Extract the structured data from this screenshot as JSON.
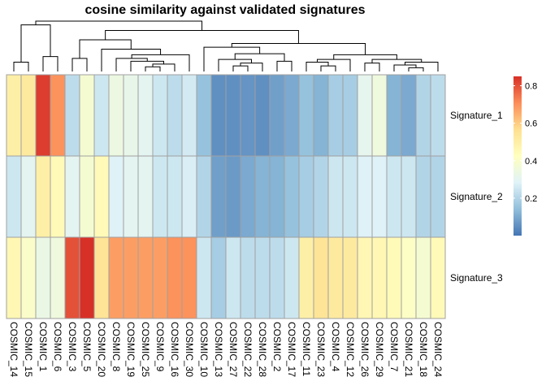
{
  "chart_data": {
    "type": "heatmap",
    "title": "cosine similarity against validated signatures",
    "columns": [
      "COSMIC_14",
      "COSMIC_15",
      "COSMIC_1",
      "COSMIC_6",
      "COSMIC_3",
      "COSMIC_5",
      "COSMIC_20",
      "COSMIC_8",
      "COSMIC_19",
      "COSMIC_25",
      "COSMIC_9",
      "COSMIC_16",
      "COSMIC_30",
      "COSMIC_10",
      "COSMIC_13",
      "COSMIC_27",
      "COSMIC_22",
      "COSMIC_28",
      "COSMIC_2",
      "COSMIC_17",
      "COSMIC_11",
      "COSMIC_23",
      "COSMIC_4",
      "COSMIC_12",
      "COSMIC_26",
      "COSMIC_29",
      "COSMIC_7",
      "COSMIC_21",
      "COSMIC_18",
      "COSMIC_24"
    ],
    "rows": [
      "Signature_1",
      "Signature_2",
      "Signature_3"
    ],
    "values": [
      [
        0.5,
        0.52,
        0.83,
        0.7,
        0.22,
        0.38,
        0.25,
        0.34,
        0.32,
        0.3,
        0.25,
        0.22,
        0.26,
        0.15,
        0.05,
        0.05,
        0.06,
        0.05,
        0.08,
        0.1,
        0.15,
        0.12,
        0.18,
        0.18,
        0.31,
        0.35,
        0.12,
        0.1,
        0.2,
        0.22
      ],
      [
        0.25,
        0.3,
        0.5,
        0.45,
        0.3,
        0.38,
        0.45,
        0.28,
        0.3,
        0.3,
        0.25,
        0.25,
        0.27,
        0.2,
        0.08,
        0.07,
        0.1,
        0.12,
        0.12,
        0.15,
        0.18,
        0.2,
        0.25,
        0.25,
        0.28,
        0.28,
        0.25,
        0.25,
        0.2,
        0.2
      ],
      [
        0.46,
        0.4,
        0.33,
        0.35,
        0.8,
        0.85,
        0.55,
        0.68,
        0.68,
        0.68,
        0.68,
        0.7,
        0.7,
        0.25,
        0.18,
        0.25,
        0.22,
        0.22,
        0.22,
        0.25,
        0.5,
        0.55,
        0.52,
        0.52,
        0.46,
        0.46,
        0.45,
        0.41,
        0.38,
        0.45
      ]
    ],
    "legend": {
      "ticks": [
        0.2,
        0.4,
        0.6,
        0.8
      ],
      "min": 0.0,
      "max": 0.85,
      "placement": "right"
    },
    "colors": [
      "#4575b4",
      "#91bfdb",
      "#e0f3f8",
      "#ffffbf",
      "#fee090",
      "#fc8d59",
      "#d73027"
    ],
    "border_color": "#a0a0a0",
    "dendrogram": [
      {
        "id": "m1",
        "a": 0,
        "b": 1,
        "h": 1.0
      },
      {
        "id": "m2",
        "a": 2,
        "b": 3,
        "h": 1.6
      },
      {
        "id": "m3",
        "a": "m1",
        "b": "m2",
        "h": 5.0
      },
      {
        "id": "m4",
        "a": 4,
        "b": 5,
        "h": 1.4
      },
      {
        "id": "m5",
        "a": 9,
        "b": 10,
        "h": 0.5
      },
      {
        "id": "m6",
        "a": "m5",
        "b": 11,
        "h": 0.8
      },
      {
        "id": "m7",
        "a": 8,
        "b": "m6",
        "h": 1.1
      },
      {
        "id": "m8",
        "a": 7,
        "b": "m7",
        "h": 1.4
      },
      {
        "id": "m9",
        "a": "m8",
        "b": 12,
        "h": 1.8
      },
      {
        "id": "m10",
        "a": 6,
        "b": "m9",
        "h": 2.4
      },
      {
        "id": "m11",
        "a": "m4",
        "b": "m10",
        "h": 3.4
      },
      {
        "id": "m12",
        "a": 15,
        "b": 16,
        "h": 0.6
      },
      {
        "id": "m13",
        "a": "m12",
        "b": 17,
        "h": 0.9
      },
      {
        "id": "m14",
        "a": 14,
        "b": "m13",
        "h": 1.3
      },
      {
        "id": "m15",
        "a": 18,
        "b": 19,
        "h": 1.1
      },
      {
        "id": "m16",
        "a": "m14",
        "b": "m15",
        "h": 1.9
      },
      {
        "id": "m17",
        "a": 13,
        "b": "m16",
        "h": 2.6
      },
      {
        "id": "m18",
        "a": 21,
        "b": 22,
        "h": 0.6
      },
      {
        "id": "m19",
        "a": 20,
        "b": "m18",
        "h": 1.0
      },
      {
        "id": "m20",
        "a": "m19",
        "b": 23,
        "h": 1.3
      },
      {
        "id": "m21",
        "a": 24,
        "b": 25,
        "h": 0.9
      },
      {
        "id": "m22",
        "a": 27,
        "b": 28,
        "h": 0.4
      },
      {
        "id": "m23",
        "a": 26,
        "b": "m22",
        "h": 0.7
      },
      {
        "id": "m24",
        "a": "m23",
        "b": 29,
        "h": 1.0
      },
      {
        "id": "m25",
        "a": "m21",
        "b": "m24",
        "h": 1.3
      },
      {
        "id": "m26",
        "a": "m20",
        "b": "m25",
        "h": 1.8
      },
      {
        "id": "m27",
        "a": "m17",
        "b": "m26",
        "h": 3.0
      },
      {
        "id": "m28",
        "a": "m11",
        "b": "m27",
        "h": 4.4
      },
      {
        "id": "m29",
        "a": "m3",
        "b": "m28",
        "h": 5.4
      }
    ]
  }
}
